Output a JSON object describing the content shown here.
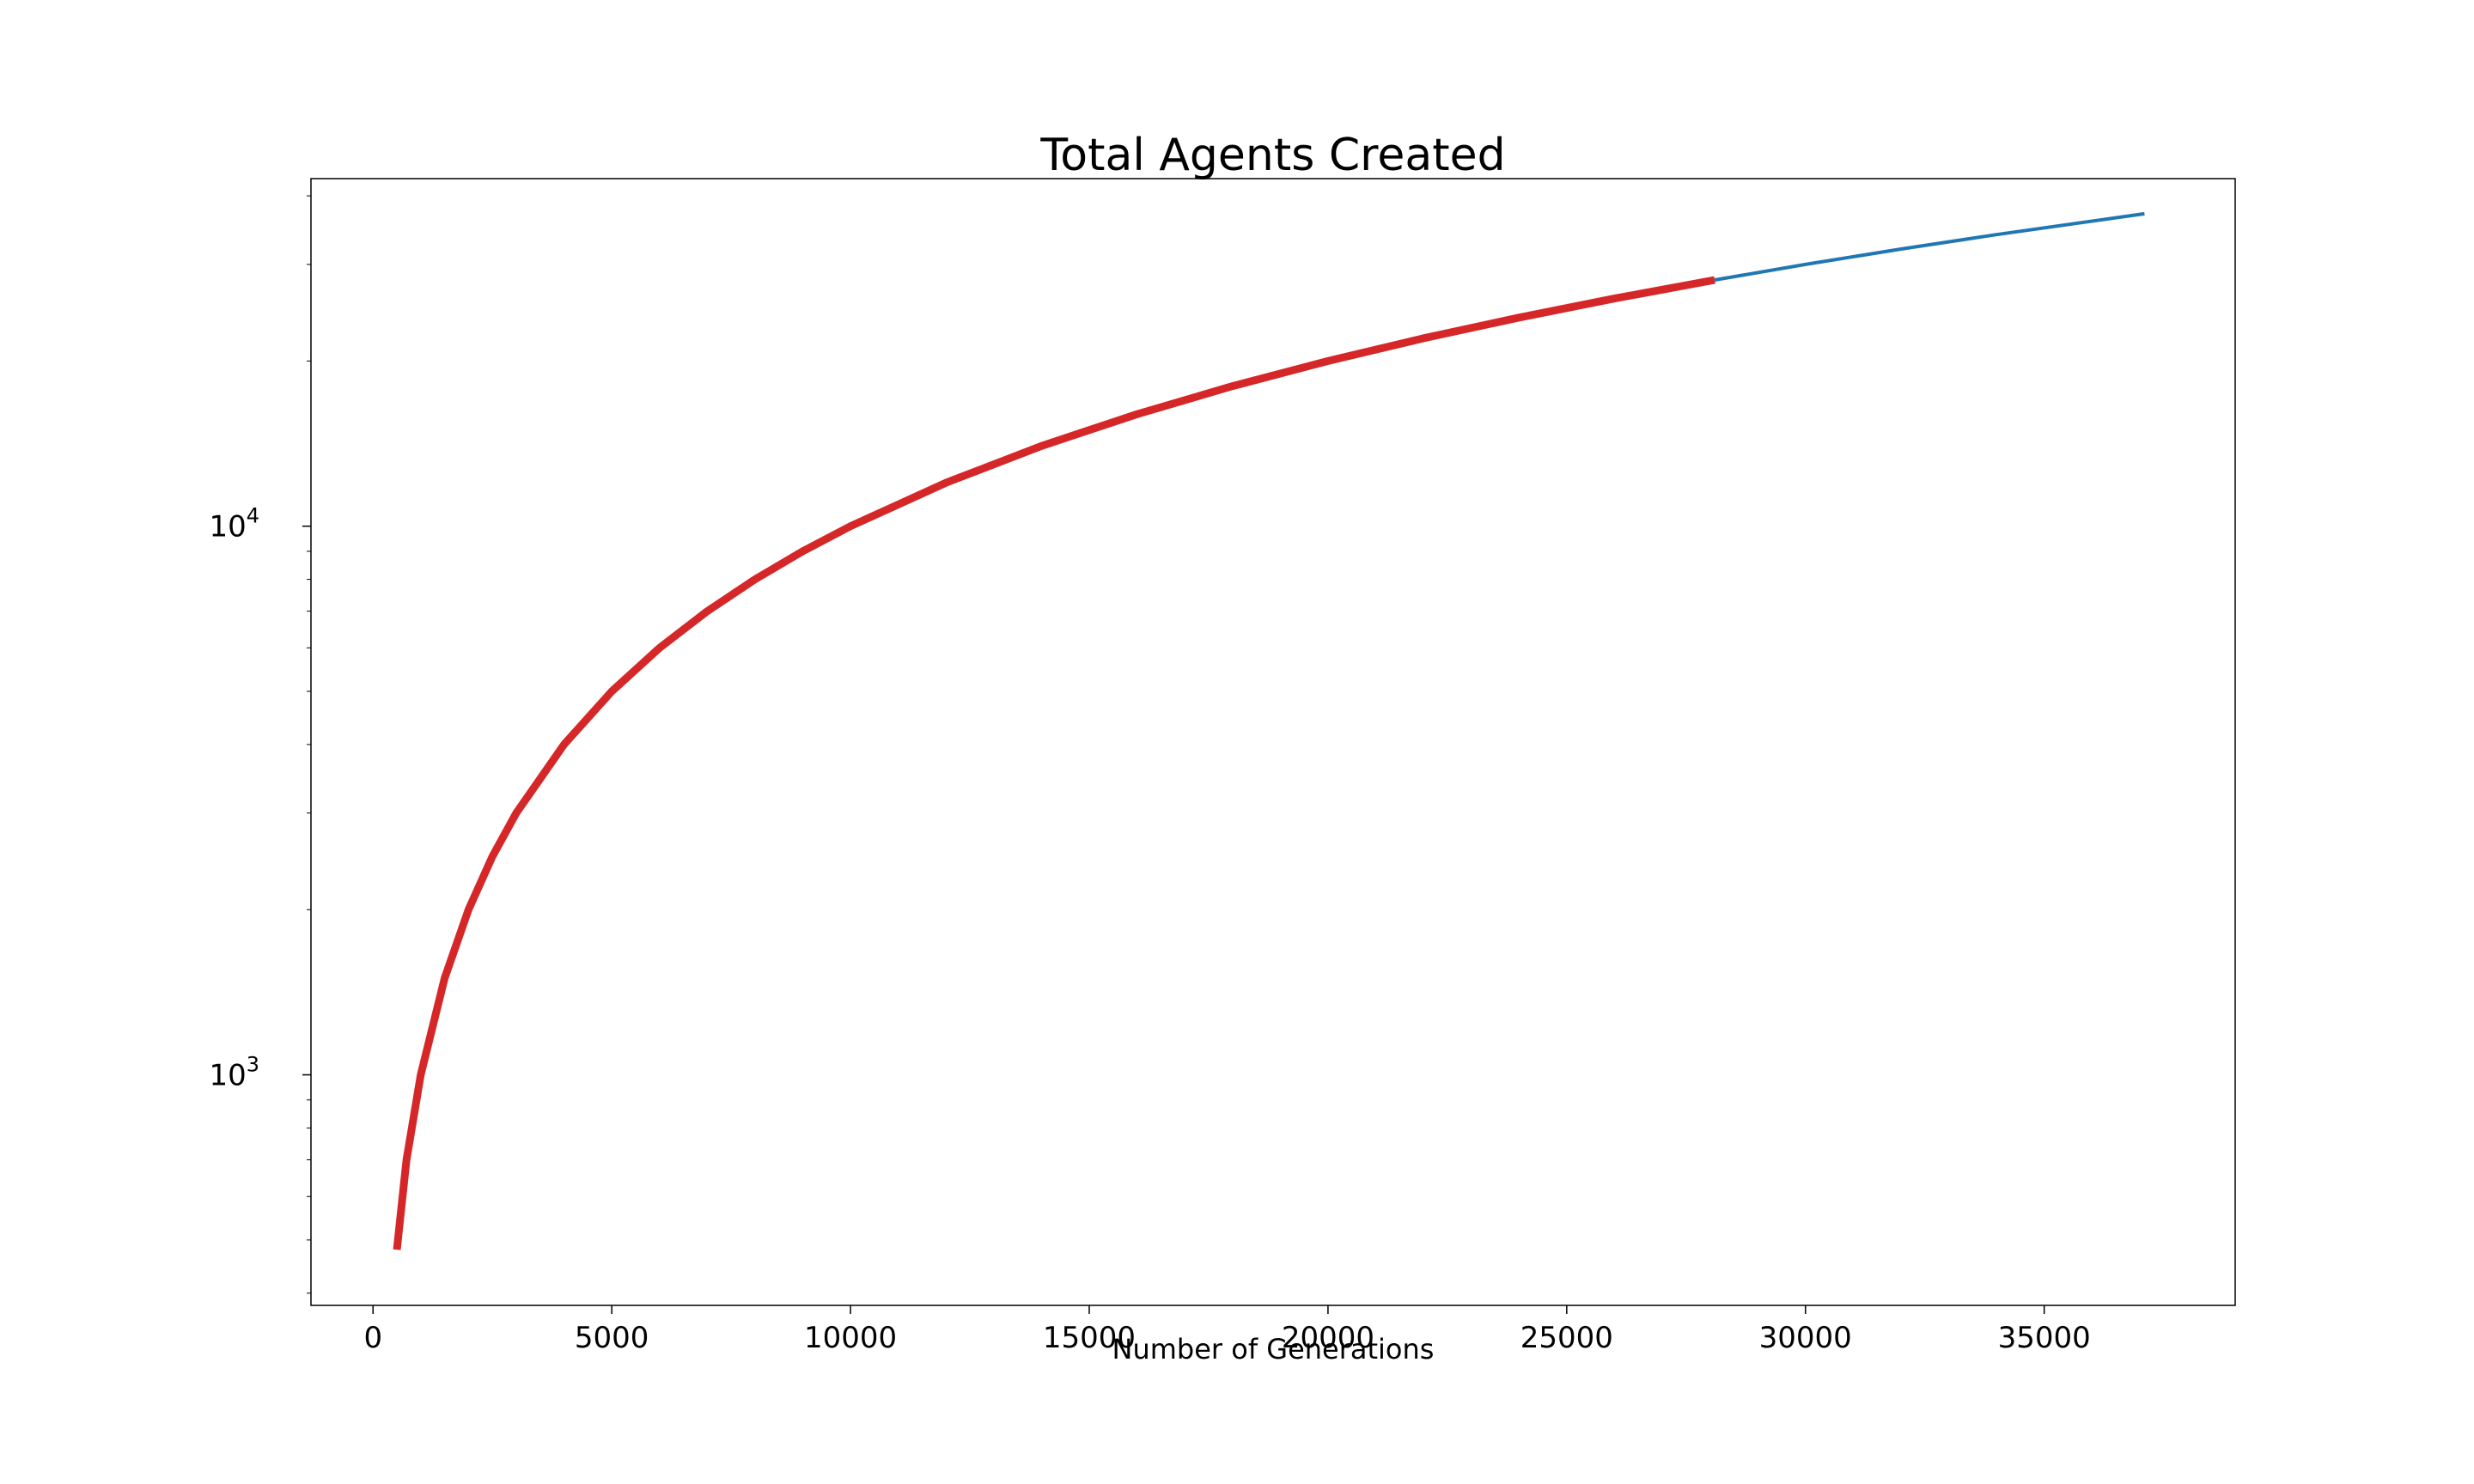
{
  "chart_data": {
    "type": "line",
    "title": "Total Agents Created",
    "xlabel": "Number of Generations",
    "ylabel": "",
    "xlim": [
      -1300,
      39000
    ],
    "ylim": [
      380,
      43000
    ],
    "yscale": "log",
    "grid": false,
    "legend": null,
    "x_ticks": [
      0,
      5000,
      10000,
      15000,
      20000,
      25000,
      30000,
      35000
    ],
    "x_tick_labels": [
      "0",
      "5000",
      "10000",
      "15000",
      "20000",
      "25000",
      "30000",
      "35000"
    ],
    "y_ticks": [
      {
        "value": 1000,
        "base": "10",
        "exp": "3"
      },
      {
        "value": 10000,
        "base": "10",
        "exp": "4"
      }
    ],
    "series": [
      {
        "color": "#d62728",
        "linewidth": "thick",
        "x": [
          500,
          700,
          1000,
          1500,
          2000,
          2500,
          3000,
          4000,
          5000,
          6000,
          7000,
          8000,
          9000,
          10000,
          12000,
          14000,
          16000,
          18000,
          20000,
          22000,
          24000,
          26000,
          28100
        ],
        "y": [
          480,
          700,
          1000,
          1500,
          2000,
          2500,
          3000,
          4000,
          5000,
          6000,
          7000,
          8000,
          9000,
          10000,
          12000,
          14000,
          16000,
          18000,
          20000,
          22000,
          24000,
          26000,
          28100
        ]
      },
      {
        "color": "#1f77b4",
        "linewidth": "thin",
        "x": [
          28100,
          30000,
          32000,
          34000,
          37100
        ],
        "y": [
          28100,
          30000,
          32000,
          34000,
          37100
        ]
      }
    ]
  }
}
